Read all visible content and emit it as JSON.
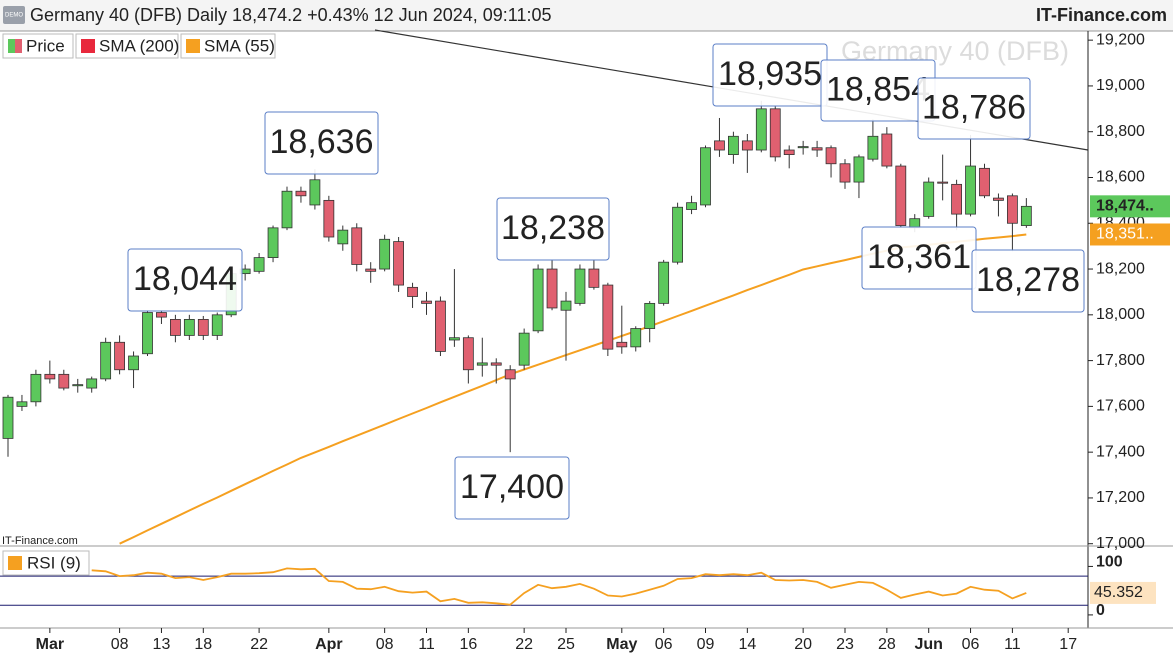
{
  "chart_data": {
    "type": "candlestick",
    "title": "Germany 40 (DFB) Daily 18,474.2 +0.43% 12 Jun 2024, 09:11:05",
    "brand": "IT-Finance.com",
    "demo_badge": "DEMO",
    "watermark": "Germany 40 (DFB)",
    "source_note": "IT-Finance.com",
    "legend": [
      {
        "name": "Price"
      },
      {
        "name": "SMA (200)",
        "color": "#e8283c"
      },
      {
        "name": "SMA (55)",
        "color": "#f5a020"
      }
    ],
    "up_color": "#5cc85c",
    "down_color": "#e06070",
    "categories": [
      null,
      null,
      null,
      "Mar",
      null,
      null,
      null,
      null,
      "08",
      null,
      null,
      "13",
      null,
      null,
      "18",
      null,
      null,
      null,
      "22",
      null,
      null,
      null,
      null,
      "Apr",
      null,
      null,
      null,
      "08",
      null,
      null,
      "11",
      null,
      null,
      "16",
      null,
      null,
      null,
      "22",
      null,
      null,
      "25",
      null,
      null,
      null,
      "May",
      null,
      null,
      "06",
      null,
      null,
      "09",
      null,
      null,
      "14",
      null,
      null,
      null,
      "20",
      null,
      null,
      "23",
      null,
      null,
      "28",
      null,
      null,
      "Jun",
      null,
      null,
      "06",
      null,
      null,
      "11",
      null,
      null,
      null,
      "17"
    ],
    "open": [
      17460,
      17600,
      17620,
      17740,
      17740,
      17690,
      17680,
      17720,
      17880,
      17760,
      17830,
      18010,
      17980,
      17910,
      17980,
      17910,
      18000,
      18180,
      18190,
      18250,
      18380,
      18540,
      18480,
      18500,
      18310,
      18380,
      18200,
      18200,
      18320,
      18120,
      18060,
      18060,
      17890,
      17900,
      17780,
      17790,
      17760,
      17780,
      17930,
      18200,
      18020,
      18050,
      18200,
      18130,
      17880,
      17860,
      17940,
      18050,
      18230,
      18460,
      18480,
      18760,
      18700,
      18760,
      18720,
      18900,
      18720,
      18730,
      18730,
      18730,
      18660,
      18580,
      18680,
      18790,
      18650,
      18380,
      18430,
      18580,
      18570,
      18440,
      18640,
      18510,
      18520,
      18390,
      null,
      null,
      null
    ],
    "high": [
      17650,
      17650,
      17760,
      17800,
      17760,
      17720,
      17730,
      17900,
      17910,
      17840,
      18020,
      18020,
      18000,
      18000,
      17995,
      18010,
      18200,
      18220,
      18270,
      18390,
      18560,
      18560,
      18636,
      18520,
      18390,
      18400,
      18230,
      18350,
      18340,
      18140,
      18100,
      18080,
      18200,
      17910,
      17900,
      17810,
      17780,
      17940,
      18220,
      18238,
      18100,
      18220,
      18238,
      18140,
      18040,
      17950,
      18060,
      18240,
      18490,
      18520,
      18740,
      18860,
      18800,
      18790,
      18935,
      18910,
      18740,
      18760,
      18760,
      18740,
      18680,
      18700,
      18854,
      18820,
      18660,
      18440,
      18600,
      18700,
      18590,
      18786,
      18660,
      18530,
      18530,
      18510,
      null,
      null,
      null
    ],
    "low": [
      17380,
      17580,
      17600,
      17700,
      17670,
      17660,
      17660,
      17710,
      17740,
      17680,
      17820,
      17960,
      17880,
      17890,
      17890,
      17890,
      17990,
      18150,
      18180,
      18230,
      18370,
      18490,
      18460,
      18320,
      18280,
      18190,
      18140,
      18190,
      18100,
      18030,
      18000,
      17820,
      17860,
      17700,
      17730,
      17700,
      17400,
      17760,
      17920,
      18020,
      17800,
      18040,
      18110,
      17820,
      17830,
      17840,
      17880,
      18040,
      18220,
      18440,
      18470,
      18690,
      18660,
      18620,
      18710,
      18670,
      18640,
      18700,
      18690,
      18600,
      18550,
      18510,
      18670,
      18640,
      18380,
      18361,
      18420,
      18500,
      18370,
      18430,
      18510,
      18430,
      18278,
      18380,
      null,
      null,
      null
    ],
    "close": [
      17640,
      17620,
      17740,
      17720,
      17680,
      17695,
      17720,
      17880,
      17760,
      17820,
      18010,
      17990,
      17910,
      17980,
      17910,
      18000,
      18180,
      18200,
      18250,
      18380,
      18540,
      18520,
      18590,
      18340,
      18370,
      18220,
      18190,
      18330,
      18130,
      18080,
      18050,
      17840,
      17900,
      17760,
      17790,
      17780,
      17720,
      17920,
      18200,
      18030,
      18060,
      18200,
      18120,
      17850,
      17860,
      17940,
      18050,
      18230,
      18470,
      18490,
      18730,
      18720,
      18780,
      18720,
      18900,
      18690,
      18700,
      18735,
      18720,
      18660,
      18580,
      18690,
      18780,
      18650,
      18390,
      18420,
      18580,
      18575,
      18440,
      18650,
      18520,
      18500,
      18400,
      18474,
      null,
      null,
      null
    ],
    "sma": {
      "name": "SMA (55)",
      "color": "#f5a020",
      "values": [
        null,
        null,
        null,
        null,
        null,
        null,
        null,
        null,
        17000,
        17029,
        17058,
        17087,
        17116,
        17145,
        17174,
        17202,
        17231,
        17260,
        17289,
        17318,
        17346,
        17375,
        17399,
        17423,
        17448,
        17472,
        17496,
        17520,
        17545,
        17569,
        17593,
        17618,
        17642,
        17666,
        17690,
        17715,
        17740,
        17761,
        17782,
        17803,
        17824,
        17845,
        17866,
        17887,
        17908,
        17929,
        17950,
        17972,
        17995,
        18017,
        18040,
        18062,
        18085,
        18108,
        18130,
        18153,
        18175,
        18198,
        18212,
        18226,
        18239,
        18253,
        18267,
        18280,
        18294,
        18300,
        18306,
        18313,
        18319,
        18325,
        18332,
        18338,
        18344,
        18351,
        null,
        null,
        null
      ]
    },
    "last_price_label": "18,474..",
    "sma_label": "18,351..",
    "annotations": [
      "18,044",
      "18,636",
      "17,400",
      "18,238",
      "18,935",
      "18,854",
      "18,786",
      "18,361",
      "18,278"
    ],
    "ylim": [
      16990,
      19240
    ],
    "yticks": [
      {
        "value": 17000,
        "label": "17,000"
      },
      {
        "value": 17200,
        "label": "17,200"
      },
      {
        "value": 17400,
        "label": "17,400"
      },
      {
        "value": 17600,
        "label": "17,600"
      },
      {
        "value": 17800,
        "label": "17,800"
      },
      {
        "value": 18000,
        "label": "18,000"
      },
      {
        "value": 18200,
        "label": "18,200"
      },
      {
        "value": 18400,
        "label": "18,400"
      },
      {
        "value": 18600,
        "label": "18,600"
      },
      {
        "value": 18800,
        "label": "18,800"
      },
      {
        "value": 19000,
        "label": "19,000"
      },
      {
        "value": 19200,
        "label": "19,200"
      }
    ],
    "rsi": {
      "name": "RSI (9)",
      "color": "#f5a020",
      "level_color": "#1a1a6e",
      "values": [
        null,
        null,
        null,
        null,
        null,
        null,
        92,
        90,
        80,
        82,
        87,
        85,
        76,
        78,
        72,
        78,
        85,
        85,
        86,
        88,
        96,
        94,
        95,
        70,
        68,
        54,
        53,
        58,
        49,
        46,
        48,
        28,
        33,
        25,
        26,
        24,
        21,
        45,
        62,
        55,
        58,
        64,
        54,
        40,
        38,
        44,
        52,
        60,
        74,
        76,
        84,
        82,
        84,
        82,
        87,
        72,
        71,
        72,
        68,
        56,
        62,
        68,
        66,
        52,
        35,
        42,
        48,
        40,
        44,
        58,
        52,
        50,
        34,
        45.352,
        null,
        null,
        null
      ],
      "ylim": [
        -27,
        138
      ],
      "yticks": [
        0,
        100
      ],
      "levels": [
        20,
        80
      ]
    }
  }
}
